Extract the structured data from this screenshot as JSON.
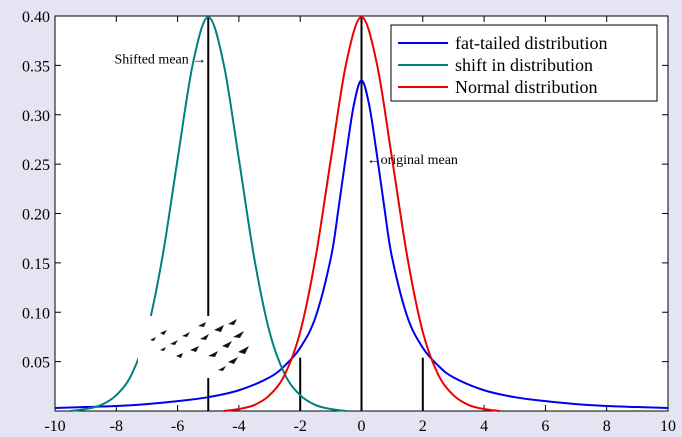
{
  "chart_data": {
    "type": "line",
    "title": "",
    "xlabel": "",
    "ylabel": "",
    "xlim": [
      -10,
      10
    ],
    "ylim": [
      0,
      0.4
    ],
    "xticks": [
      -10,
      -8,
      -6,
      -4,
      -2,
      0,
      2,
      4,
      6,
      8,
      10
    ],
    "xtick_labels": [
      "-10",
      "-8",
      "-6",
      "-4",
      "-2",
      "0",
      "2",
      "4",
      "6",
      "8",
      "10"
    ],
    "yticks": [
      0.05,
      0.1,
      0.15,
      0.2,
      0.25,
      0.3,
      0.35,
      0.4
    ],
    "ytick_labels": [
      "0.05",
      "0.10",
      "0.15",
      "0.20",
      "0.25",
      "0.30",
      "0.35",
      "0.40"
    ],
    "grid": false,
    "legend_position": "top-right",
    "series": [
      {
        "name": "fat-tailed distribution",
        "color": "#0000ee",
        "x": [
          -10,
          -9,
          -8,
          -7,
          -6,
          -5,
          -4,
          -3,
          -2.5,
          -2,
          -1.5,
          -1,
          -0.75,
          -0.5,
          -0.25,
          0,
          0.25,
          0.5,
          0.75,
          1,
          1.5,
          2,
          2.5,
          3,
          4,
          5,
          6,
          7,
          8,
          9,
          10
        ],
        "y": [
          0.003,
          0.004,
          0.005,
          0.007,
          0.01,
          0.014,
          0.021,
          0.034,
          0.046,
          0.064,
          0.095,
          0.155,
          0.205,
          0.26,
          0.31,
          0.335,
          0.31,
          0.26,
          0.205,
          0.155,
          0.095,
          0.064,
          0.046,
          0.034,
          0.021,
          0.014,
          0.01,
          0.007,
          0.005,
          0.004,
          0.003
        ]
      },
      {
        "name": "shift in distribution",
        "color": "#008080",
        "x": [
          -9.5,
          -9,
          -8.5,
          -8,
          -7.5,
          -7,
          -6.5,
          -6,
          -5.5,
          -5,
          -4.5,
          -4,
          -3.5,
          -3,
          -2.5,
          -2,
          -1.5,
          -1,
          -0.5
        ],
        "y": [
          0.0,
          0.002,
          0.006,
          0.016,
          0.037,
          0.08,
          0.155,
          0.255,
          0.352,
          0.399,
          0.352,
          0.255,
          0.155,
          0.08,
          0.037,
          0.016,
          0.006,
          0.002,
          0.0
        ]
      },
      {
        "name": "Normal distribution",
        "color": "#ee0000",
        "x": [
          -4.5,
          -4,
          -3.5,
          -3,
          -2.5,
          -2,
          -1.5,
          -1,
          -0.5,
          0,
          0.5,
          1,
          1.5,
          2,
          2.5,
          3,
          3.5,
          4,
          4.5
        ],
        "y": [
          0.0,
          0.002,
          0.006,
          0.016,
          0.037,
          0.08,
          0.155,
          0.255,
          0.352,
          0.399,
          0.352,
          0.255,
          0.155,
          0.08,
          0.037,
          0.016,
          0.006,
          0.002,
          0.0
        ]
      }
    ],
    "vlines": [
      {
        "x": -5,
        "y": 0.399
      },
      {
        "x": 0,
        "y": 0.399
      },
      {
        "x": -2,
        "y": 0.054
      },
      {
        "x": 2,
        "y": 0.054
      }
    ],
    "annotations": [
      {
        "text": "Shifted mean",
        "arrow": "→",
        "x": -5,
        "y": 0.357,
        "side": "left"
      },
      {
        "text": "original mean",
        "arrow": "←",
        "x": 0.1,
        "y": 0.255,
        "side": "right"
      }
    ],
    "inset_image": {
      "description_icon": "birds-flock-icon",
      "x": -6.9,
      "y": 0.09
    }
  }
}
